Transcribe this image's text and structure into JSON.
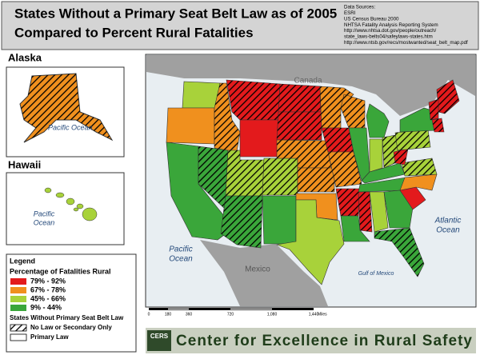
{
  "header": {
    "title_lines": [
      "States Without a Primary Seat Belt Law as of 2005",
      "Compared to Percent Rural Fatalities"
    ],
    "sources": [
      "Data Sources:",
      "ESRI",
      "US Census Bureau 2000",
      "NHTSA Fatality Analysis Reporting System",
      "http://www.nhtsa.dot.gov/people/outreach/",
      "state_laws-belts04/safeylaws-states.htm",
      "http://www.ntsb.gov/recs/mostwanted/seat_belt_map.pdf"
    ]
  },
  "insets": {
    "alaska": {
      "label": "Alaska",
      "ocean": "Pacific Ocean"
    },
    "hawaii": {
      "label": "Hawaii",
      "ocean_lines": [
        "Pacific",
        "Ocean"
      ]
    }
  },
  "map_labels": {
    "canada": "Canada",
    "mexico": "Mexico",
    "pacific": [
      "Pacific",
      "Ocean"
    ],
    "atlantic": [
      "Atlantic",
      "Ocean"
    ],
    "gulf": "Gulf of Mexico"
  },
  "scale": {
    "ticks": [
      "0",
      "180",
      "360",
      "720",
      "1,080",
      "1,440"
    ],
    "unit": "Miles"
  },
  "legend": {
    "title": "Legend",
    "subtitle": "Percentage of Fatalities Rural",
    "items": [
      {
        "label": "79% - 92%",
        "color": "#e31a1c"
      },
      {
        "label": "67% - 78%",
        "color": "#f0901e"
      },
      {
        "label": "45% - 66%",
        "color": "#a8d23a"
      },
      {
        "label": "9% - 44%",
        "color": "#3aa63a"
      }
    ],
    "law_heading": "States Without Primary Seat Belt Law",
    "law_items": [
      "No Law or Secondary Only",
      "Primary Law"
    ]
  },
  "banner": {
    "logo": "CERS",
    "text": "Center for Excellence in Rural Safety"
  }
}
